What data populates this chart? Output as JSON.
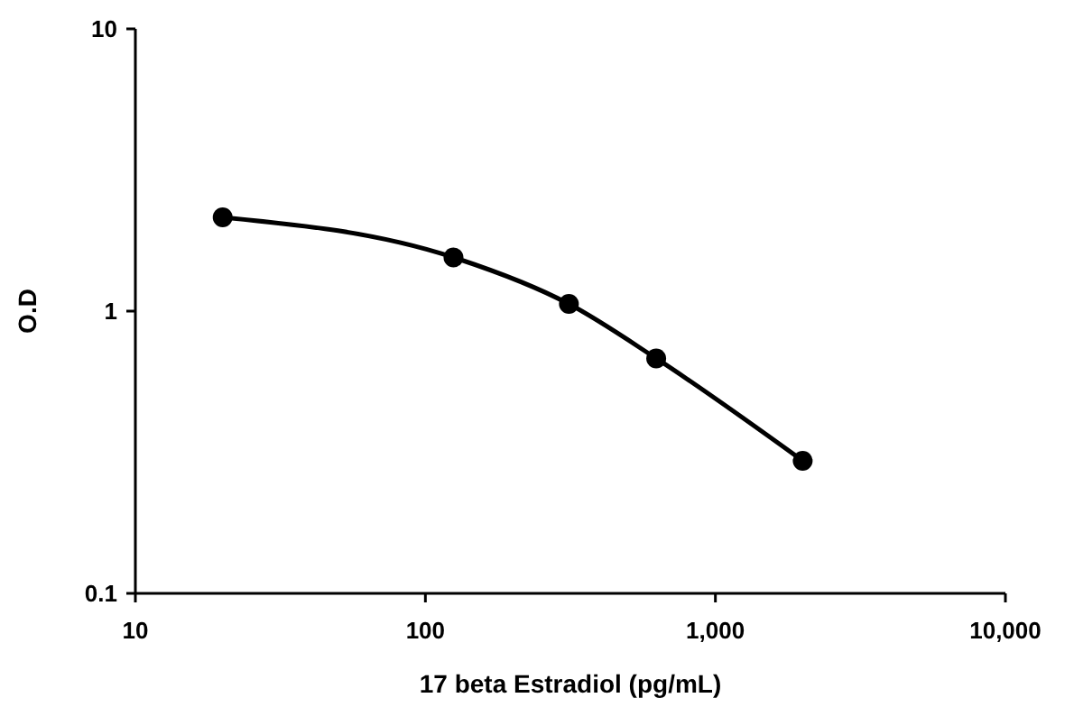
{
  "chart_data": {
    "type": "line",
    "xlabel": "17 beta Estradiol (pg/mL)",
    "ylabel": "O.D",
    "log": "xy",
    "x": [
      20,
      125,
      312.5,
      625,
      2000
    ],
    "series": [
      {
        "color": "#000000",
        "values": [
          2.15,
          1.55,
          1.06,
          0.68,
          0.295
        ]
      }
    ],
    "xlim": [
      10,
      10000
    ],
    "xticks": [
      10,
      100,
      {
        "value": 1000,
        "label": "1,000"
      },
      {
        "value": 10000,
        "label": "10,000"
      }
    ],
    "ylim": [
      0.1,
      10
    ],
    "yticks": [
      0.1,
      1,
      10
    ],
    "grid": false,
    "marker": "circle",
    "line_style": "solid"
  }
}
